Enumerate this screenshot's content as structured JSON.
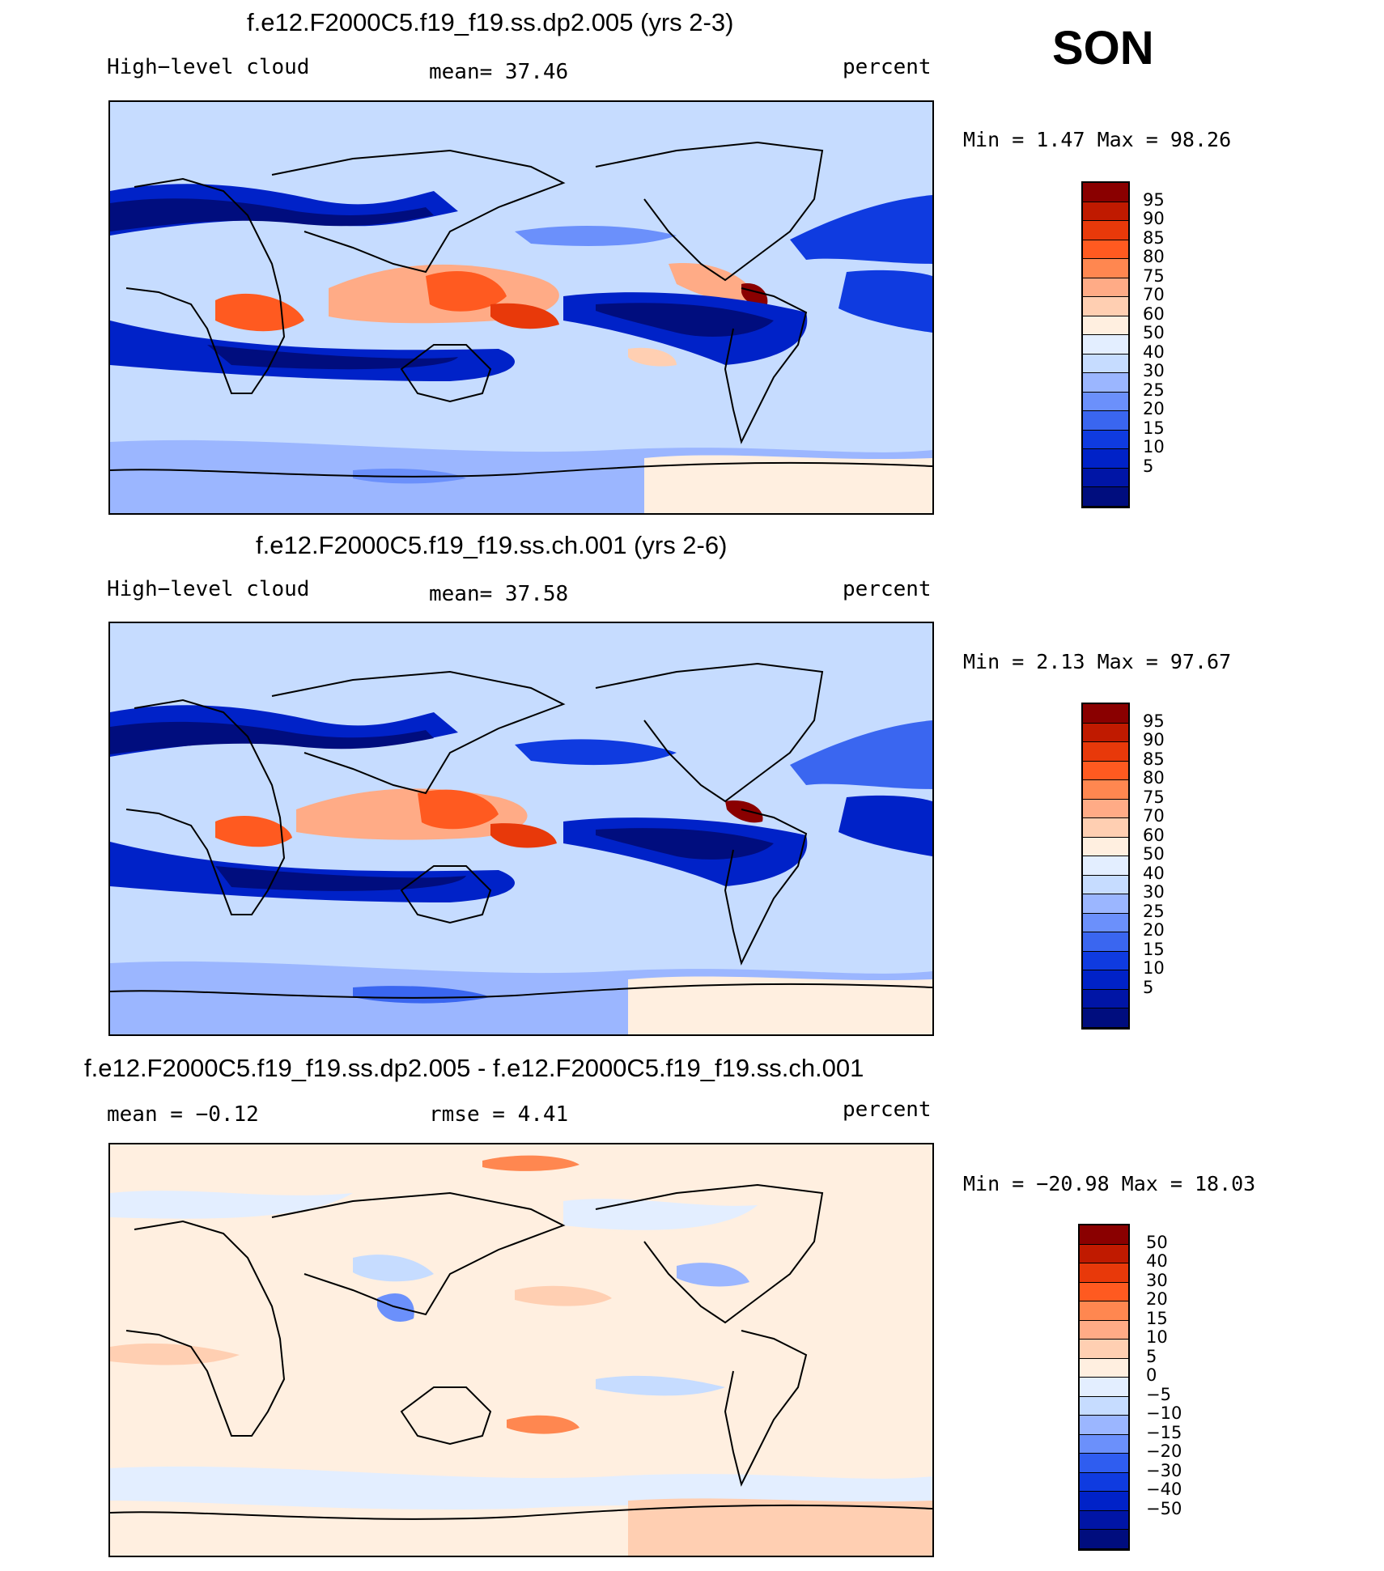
{
  "season": "SON",
  "colors": {
    "ctrl_levels": [
      "#000d7e",
      "#0015a6",
      "#0022c8",
      "#0f3be0",
      "#3a66f0",
      "#6b90fb",
      "#9bb6ff",
      "#c6dcff",
      "#e3eeff",
      "#ffefe0",
      "#ffcfb2",
      "#ffab86",
      "#ff8750",
      "#ff5a20",
      "#e8390a",
      "#c01a00",
      "#8a0000"
    ],
    "diff_levels": [
      "#000d7e",
      "#0015a6",
      "#0022c8",
      "#0f3be0",
      "#2f5df0",
      "#6b90fb",
      "#9bb6ff",
      "#c6dcff",
      "#e3eeff",
      "#ffefe0",
      "#ffcfb2",
      "#ffab86",
      "#ff8750",
      "#ff5a20",
      "#e8390a",
      "#c01a00",
      "#8a0000"
    ]
  },
  "panels": [
    {
      "title": "f.e12.F2000C5.f19_f19.ss.dp2.005 (yrs 2-3)",
      "left_label": "High−level cloud",
      "center_label": "mean=   37.46",
      "right_label": "percent",
      "minmax": "Min =    1.47 Max =   98.26",
      "colorbar_ticks": [
        "95",
        "90",
        "85",
        "80",
        "75",
        "70",
        "60",
        "50",
        "40",
        "30",
        "25",
        "20",
        "15",
        "10",
        "5"
      ]
    },
    {
      "title": "f.e12.F2000C5.f19_f19.ss.ch.001 (yrs 2-6)",
      "left_label": "High−level cloud",
      "center_label": "mean=   37.58",
      "right_label": "percent",
      "minmax": "Min =    2.13 Max =   97.67",
      "colorbar_ticks": [
        "95",
        "90",
        "85",
        "80",
        "75",
        "70",
        "60",
        "50",
        "40",
        "30",
        "25",
        "20",
        "15",
        "10",
        "5"
      ]
    },
    {
      "title": "f.e12.F2000C5.f19_f19.ss.dp2.005 - f.e12.F2000C5.f19_f19.ss.ch.001",
      "left_label": "mean =   −0.12",
      "center_label": "rmse =    4.41",
      "right_label": "percent",
      "minmax": "Min = −20.98 Max =   18.03",
      "colorbar_ticks": [
        "50",
        "40",
        "30",
        "20",
        "15",
        "10",
        "5",
        "0",
        "−5",
        "−10",
        "−15",
        "−20",
        "−30",
        "−40",
        "−50"
      ]
    }
  ],
  "chart_data": [
    {
      "type": "heatmap",
      "title": "f.e12.F2000C5.f19_f19.ss.dp2.005 (yrs 2-3)",
      "variable": "High-level cloud",
      "units": "percent",
      "mean": 37.46,
      "min": 1.47,
      "max": 98.26,
      "levels": [
        5,
        10,
        15,
        20,
        25,
        30,
        40,
        50,
        60,
        70,
        75,
        80,
        85,
        90,
        95
      ]
    },
    {
      "type": "heatmap",
      "title": "f.e12.F2000C5.f19_f19.ss.ch.001 (yrs 2-6)",
      "variable": "High-level cloud",
      "units": "percent",
      "mean": 37.58,
      "min": 2.13,
      "max": 97.67,
      "levels": [
        5,
        10,
        15,
        20,
        25,
        30,
        40,
        50,
        60,
        70,
        75,
        80,
        85,
        90,
        95
      ]
    },
    {
      "type": "heatmap",
      "title": "f.e12.F2000C5.f19_f19.ss.dp2.005 - f.e12.F2000C5.f19_f19.ss.ch.001",
      "units": "percent",
      "mean": -0.12,
      "rmse": 4.41,
      "min": -20.98,
      "max": 18.03,
      "levels": [
        -50,
        -40,
        -30,
        -20,
        -15,
        -10,
        -5,
        0,
        5,
        10,
        15,
        20,
        30,
        40,
        50
      ]
    }
  ]
}
